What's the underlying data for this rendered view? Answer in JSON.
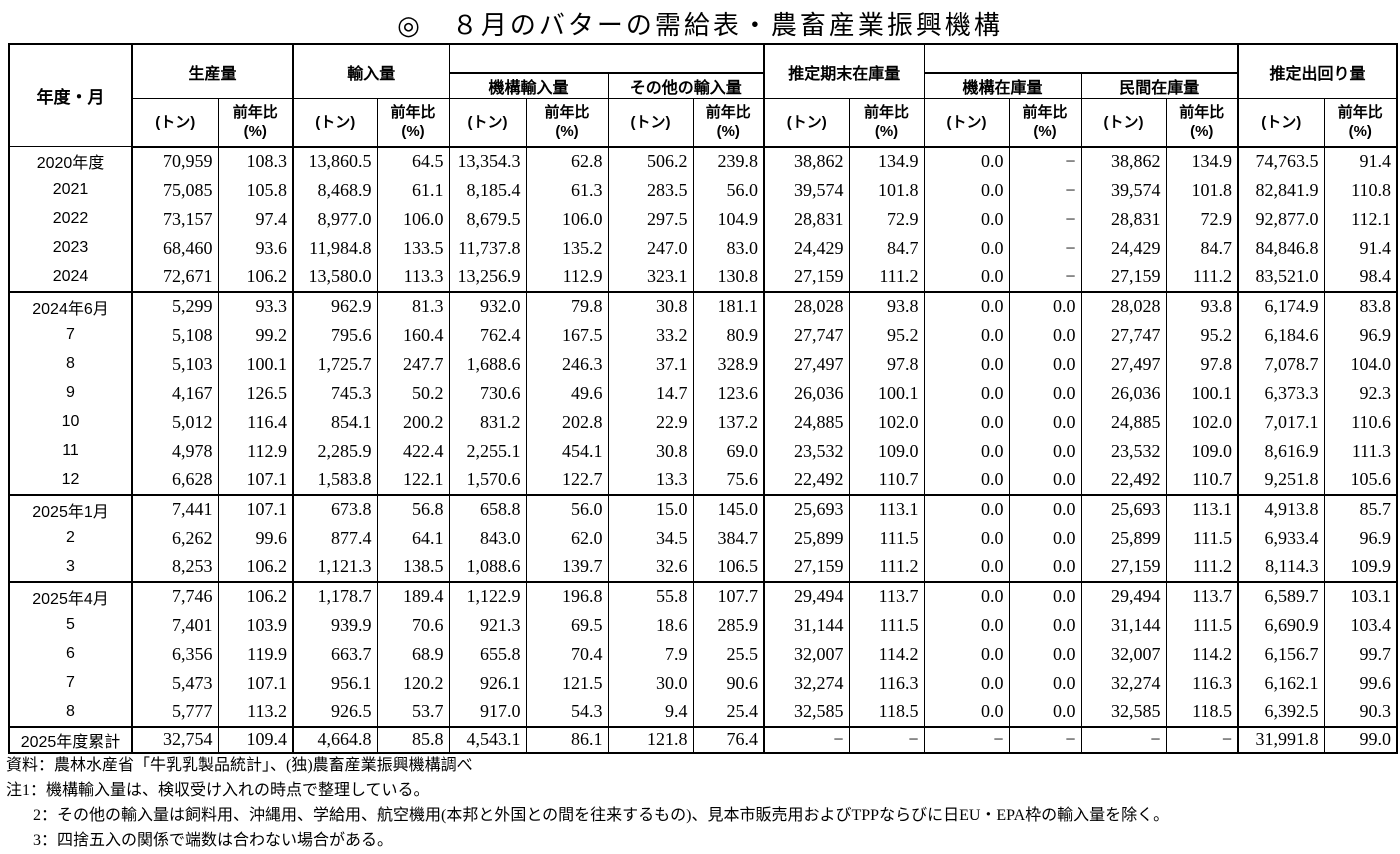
{
  "title": "◎　８月のバターの需給表・農畜産業振興機構",
  "table": {
    "corner": "年度・月",
    "production": "生産量",
    "imports": "輸入量",
    "agency_imports": "機構輸入量",
    "other_imports": "その他の輸入量",
    "ending_stocks": "推定期末在庫量",
    "agency_stocks": "機構在庫量",
    "private_stocks": "民間在庫量",
    "shipments": "推定出回り量",
    "unit_ton": "(トン)",
    "unit_yoy_line1": "前年比",
    "unit_yoy_line2": "(%)",
    "rows": [
      {
        "label": "2020年度",
        "block": false,
        "total": false,
        "v": [
          "70,959",
          "108.3",
          "13,860.5",
          "64.5",
          "13,354.3",
          "62.8",
          "506.2",
          "239.8",
          "38,862",
          "134.9",
          "0.0",
          "−",
          "38,862",
          "134.9",
          "74,763.5",
          "91.4"
        ]
      },
      {
        "label": "2021",
        "block": false,
        "total": false,
        "v": [
          "75,085",
          "105.8",
          "8,468.9",
          "61.1",
          "8,185.4",
          "61.3",
          "283.5",
          "56.0",
          "39,574",
          "101.8",
          "0.0",
          "−",
          "39,574",
          "101.8",
          "82,841.9",
          "110.8"
        ]
      },
      {
        "label": "2022",
        "block": false,
        "total": false,
        "v": [
          "73,157",
          "97.4",
          "8,977.0",
          "106.0",
          "8,679.5",
          "106.0",
          "297.5",
          "104.9",
          "28,831",
          "72.9",
          "0.0",
          "−",
          "28,831",
          "72.9",
          "92,877.0",
          "112.1"
        ]
      },
      {
        "label": "2023",
        "block": false,
        "total": false,
        "v": [
          "68,460",
          "93.6",
          "11,984.8",
          "133.5",
          "11,737.8",
          "135.2",
          "247.0",
          "83.0",
          "24,429",
          "84.7",
          "0.0",
          "−",
          "24,429",
          "84.7",
          "84,846.8",
          "91.4"
        ]
      },
      {
        "label": "2024",
        "block": false,
        "total": false,
        "v": [
          "72,671",
          "106.2",
          "13,580.0",
          "113.3",
          "13,256.9",
          "112.9",
          "323.1",
          "130.8",
          "27,159",
          "111.2",
          "0.0",
          "−",
          "27,159",
          "111.2",
          "83,521.0",
          "98.4"
        ]
      },
      {
        "label": "2024年6月",
        "block": true,
        "total": false,
        "v": [
          "5,299",
          "93.3",
          "962.9",
          "81.3",
          "932.0",
          "79.8",
          "30.8",
          "181.1",
          "28,028",
          "93.8",
          "0.0",
          "0.0",
          "28,028",
          "93.8",
          "6,174.9",
          "83.8"
        ]
      },
      {
        "label": "7",
        "block": false,
        "total": false,
        "v": [
          "5,108",
          "99.2",
          "795.6",
          "160.4",
          "762.4",
          "167.5",
          "33.2",
          "80.9",
          "27,747",
          "95.2",
          "0.0",
          "0.0",
          "27,747",
          "95.2",
          "6,184.6",
          "96.9"
        ]
      },
      {
        "label": "8",
        "block": false,
        "total": false,
        "v": [
          "5,103",
          "100.1",
          "1,725.7",
          "247.7",
          "1,688.6",
          "246.3",
          "37.1",
          "328.9",
          "27,497",
          "97.8",
          "0.0",
          "0.0",
          "27,497",
          "97.8",
          "7,078.7",
          "104.0"
        ]
      },
      {
        "label": "9",
        "block": false,
        "total": false,
        "v": [
          "4,167",
          "126.5",
          "745.3",
          "50.2",
          "730.6",
          "49.6",
          "14.7",
          "123.6",
          "26,036",
          "100.1",
          "0.0",
          "0.0",
          "26,036",
          "100.1",
          "6,373.3",
          "92.3"
        ]
      },
      {
        "label": "10",
        "block": false,
        "total": false,
        "v": [
          "5,012",
          "116.4",
          "854.1",
          "200.2",
          "831.2",
          "202.8",
          "22.9",
          "137.2",
          "24,885",
          "102.0",
          "0.0",
          "0.0",
          "24,885",
          "102.0",
          "7,017.1",
          "110.6"
        ]
      },
      {
        "label": "11",
        "block": false,
        "total": false,
        "v": [
          "4,978",
          "112.9",
          "2,285.9",
          "422.4",
          "2,255.1",
          "454.1",
          "30.8",
          "69.0",
          "23,532",
          "109.0",
          "0.0",
          "0.0",
          "23,532",
          "109.0",
          "8,616.9",
          "111.3"
        ]
      },
      {
        "label": "12",
        "block": false,
        "total": false,
        "v": [
          "6,628",
          "107.1",
          "1,583.8",
          "122.1",
          "1,570.6",
          "122.7",
          "13.3",
          "75.6",
          "22,492",
          "110.7",
          "0.0",
          "0.0",
          "22,492",
          "110.7",
          "9,251.8",
          "105.6"
        ]
      },
      {
        "label": "2025年1月",
        "block": true,
        "total": false,
        "v": [
          "7,441",
          "107.1",
          "673.8",
          "56.8",
          "658.8",
          "56.0",
          "15.0",
          "145.0",
          "25,693",
          "113.1",
          "0.0",
          "0.0",
          "25,693",
          "113.1",
          "4,913.8",
          "85.7"
        ]
      },
      {
        "label": "2",
        "block": false,
        "total": false,
        "v": [
          "6,262",
          "99.6",
          "877.4",
          "64.1",
          "843.0",
          "62.0",
          "34.5",
          "384.7",
          "25,899",
          "111.5",
          "0.0",
          "0.0",
          "25,899",
          "111.5",
          "6,933.4",
          "96.9"
        ]
      },
      {
        "label": "3",
        "block": false,
        "total": false,
        "v": [
          "8,253",
          "106.2",
          "1,121.3",
          "138.5",
          "1,088.6",
          "139.7",
          "32.6",
          "106.5",
          "27,159",
          "111.2",
          "0.0",
          "0.0",
          "27,159",
          "111.2",
          "8,114.3",
          "109.9"
        ]
      },
      {
        "label": "2025年4月",
        "block": true,
        "total": false,
        "v": [
          "7,746",
          "106.2",
          "1,178.7",
          "189.4",
          "1,122.9",
          "196.8",
          "55.8",
          "107.7",
          "29,494",
          "113.7",
          "0.0",
          "0.0",
          "29,494",
          "113.7",
          "6,589.7",
          "103.1"
        ]
      },
      {
        "label": "5",
        "block": false,
        "total": false,
        "v": [
          "7,401",
          "103.9",
          "939.9",
          "70.6",
          "921.3",
          "69.5",
          "18.6",
          "285.9",
          "31,144",
          "111.5",
          "0.0",
          "0.0",
          "31,144",
          "111.5",
          "6,690.9",
          "103.4"
        ]
      },
      {
        "label": "6",
        "block": false,
        "total": false,
        "v": [
          "6,356",
          "119.9",
          "663.7",
          "68.9",
          "655.8",
          "70.4",
          "7.9",
          "25.5",
          "32,007",
          "114.2",
          "0.0",
          "0.0",
          "32,007",
          "114.2",
          "6,156.7",
          "99.7"
        ]
      },
      {
        "label": "7",
        "block": false,
        "total": false,
        "v": [
          "5,473",
          "107.1",
          "956.1",
          "120.2",
          "926.1",
          "121.5",
          "30.0",
          "90.6",
          "32,274",
          "116.3",
          "0.0",
          "0.0",
          "32,274",
          "116.3",
          "6,162.1",
          "99.6"
        ]
      },
      {
        "label": "8",
        "block": false,
        "total": false,
        "v": [
          "5,777",
          "113.2",
          "926.5",
          "53.7",
          "917.0",
          "54.3",
          "9.4",
          "25.4",
          "32,585",
          "118.5",
          "0.0",
          "0.0",
          "32,585",
          "118.5",
          "6,392.5",
          "90.3"
        ]
      },
      {
        "label": "2025年度累計",
        "block": true,
        "total": true,
        "v": [
          "32,754",
          "109.4",
          "4,664.8",
          "85.8",
          "4,543.1",
          "86.1",
          "121.8",
          "76.4",
          "−",
          "−",
          "−",
          "−",
          "−",
          "−",
          "31,991.8",
          "99.0"
        ]
      }
    ]
  },
  "notes": {
    "source": "資料：農林水産省「牛乳乳製品統計」、(独)農畜産業振興機構調べ",
    "note1": "注1：機構輸入量は、検収受け入れの時点で整理している。",
    "note2": "2：その他の輸入量は飼料用、沖縄用、学給用、航空機用(本邦と外国との間を往来するもの)、見本市販売用およびTPPならびに日EU・EPA枠の輸入量を除く。",
    "note3": "3：四捨五入の関係で端数は合わない場合がある。"
  }
}
